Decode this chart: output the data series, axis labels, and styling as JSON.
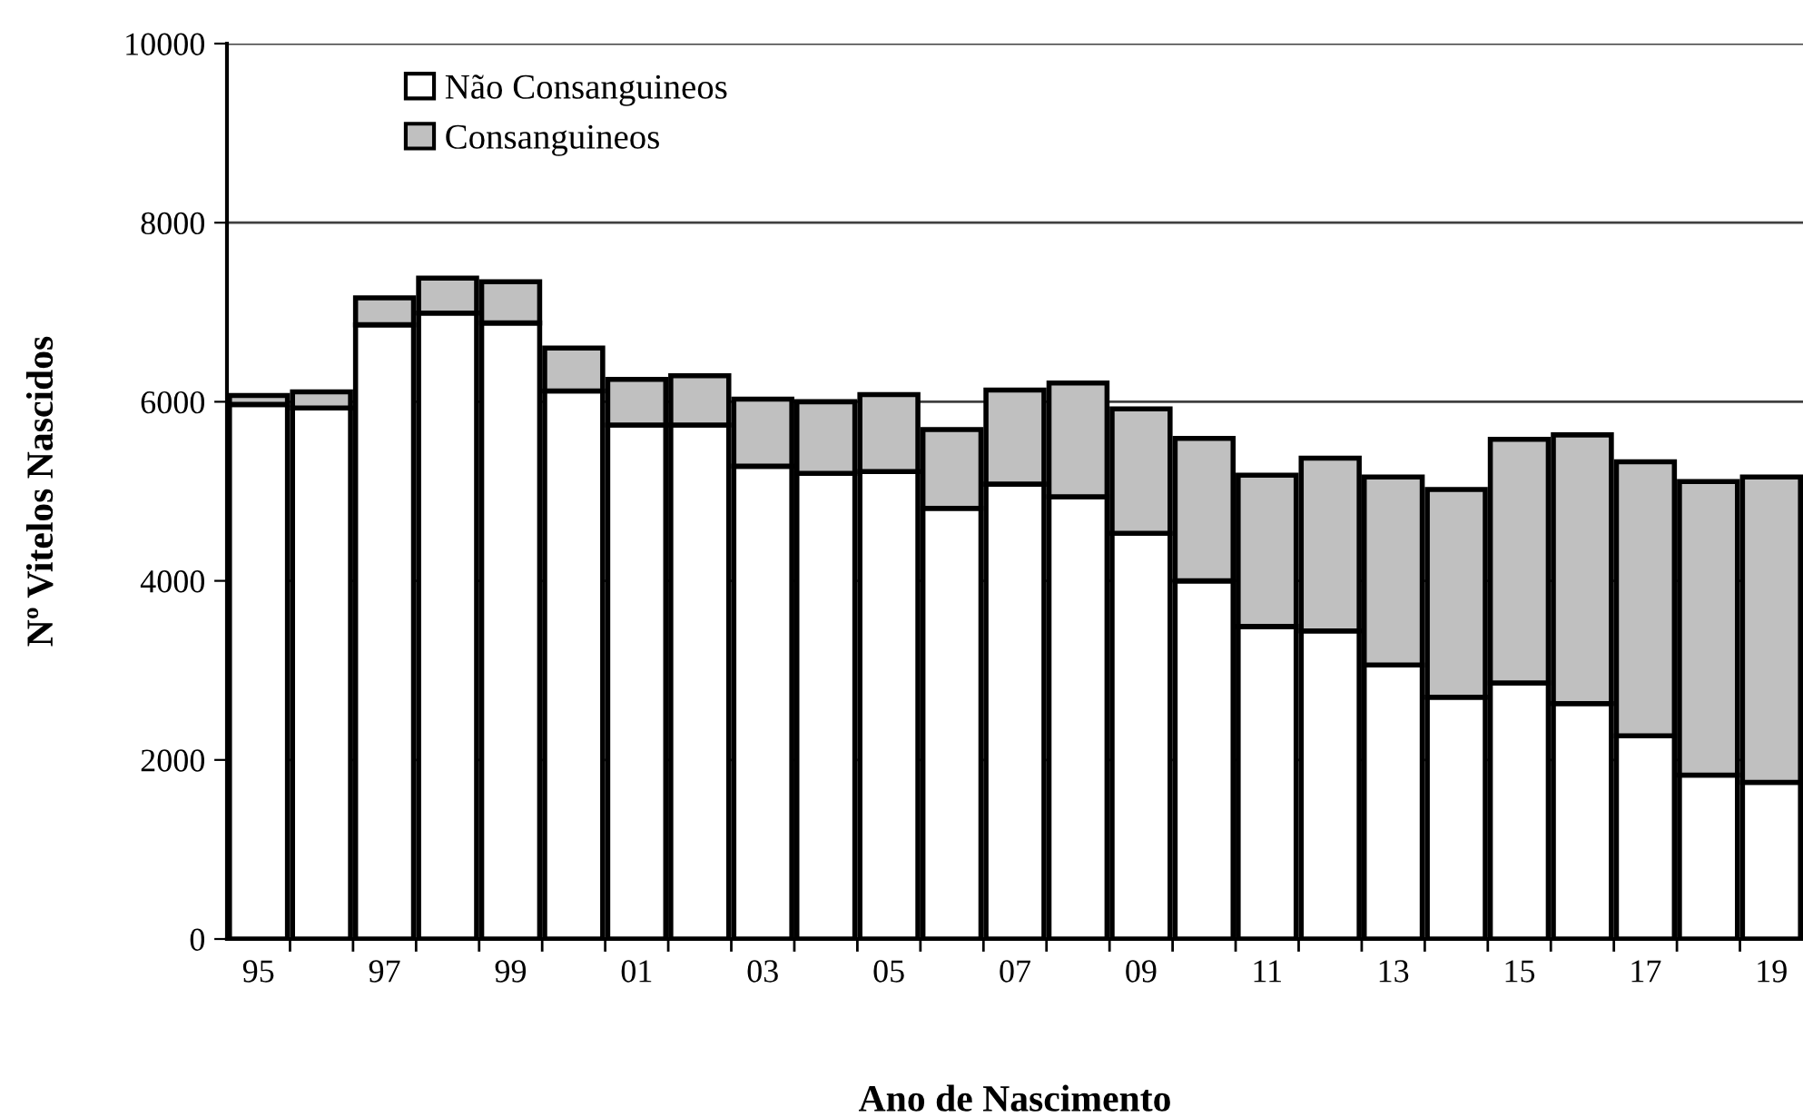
{
  "chart_data": {
    "type": "bar",
    "stacked": true,
    "xlabel": "Ano de Nascimento",
    "ylabel": "Nº Vitelos Nascidos",
    "categories": [
      "95",
      null,
      "97",
      null,
      "99",
      null,
      "01",
      null,
      "03",
      null,
      "05",
      null,
      "07",
      null,
      "09",
      null,
      "11",
      null,
      "13",
      null,
      "15",
      null,
      "17",
      null,
      "19"
    ],
    "series": [
      {
        "name": "Não Consanguineos",
        "color": "#ffffff",
        "values": [
          5970,
          5930,
          6860,
          6990,
          6880,
          6120,
          5740,
          5740,
          5280,
          5200,
          5220,
          4810,
          5080,
          4940,
          4530,
          4000,
          3490,
          3440,
          3060,
          2700,
          2860,
          2630,
          2270,
          1830,
          1750
        ]
      },
      {
        "name": "Consanguineos",
        "color": "#c0c0c0",
        "values": [
          100,
          180,
          300,
          390,
          460,
          480,
          510,
          550,
          750,
          800,
          860,
          880,
          1050,
          1270,
          1390,
          1590,
          1690,
          1930,
          2100,
          2320,
          2720,
          3000,
          3060,
          3280,
          3410
        ]
      }
    ],
    "ylim": [
      0,
      10000
    ],
    "yticks": [
      0,
      2000,
      4000,
      6000,
      8000,
      10000
    ],
    "grid": "y",
    "legend": "top left"
  }
}
